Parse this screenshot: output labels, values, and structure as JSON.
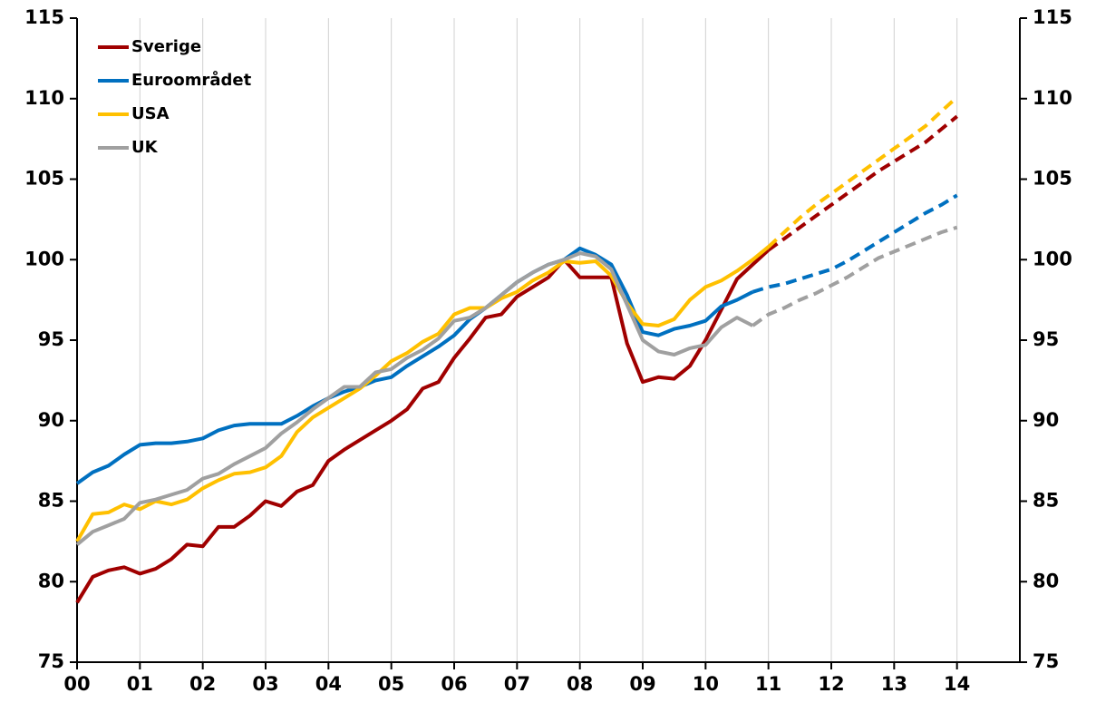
{
  "chart_data": {
    "type": "line",
    "x": [
      0,
      0.25,
      0.5,
      0.75,
      1,
      1.25,
      1.5,
      1.75,
      2,
      2.25,
      2.5,
      2.75,
      3,
      3.25,
      3.5,
      3.75,
      4,
      4.25,
      4.5,
      4.75,
      5,
      5.25,
      5.5,
      5.75,
      6,
      6.25,
      6.5,
      6.75,
      7,
      7.25,
      7.5,
      7.75,
      8,
      8.25,
      8.5,
      8.75,
      9,
      9.25,
      9.5,
      9.75,
      10,
      10.25,
      10.5,
      10.75,
      11,
      11.25,
      11.5,
      11.75,
      12,
      12.25,
      12.5,
      12.75,
      13,
      13.25,
      13.5,
      13.75,
      14
    ],
    "series": [
      {
        "name": "Sverige",
        "color": "#a00000",
        "forecast_from": 11,
        "values": [
          78.7,
          80.3,
          80.7,
          80.9,
          80.5,
          80.8,
          81.4,
          82.3,
          82.2,
          83.4,
          83.4,
          84.1,
          85.0,
          84.7,
          85.6,
          86.0,
          87.5,
          88.2,
          88.8,
          89.4,
          90.0,
          90.7,
          92.0,
          92.4,
          93.9,
          95.1,
          96.4,
          96.6,
          97.7,
          98.3,
          98.9,
          100.0,
          98.9,
          98.9,
          98.9,
          94.8,
          92.4,
          92.7,
          92.6,
          93.4,
          95.0,
          96.9,
          98.8,
          99.7,
          100.6,
          101.3,
          102.0,
          102.7,
          103.4,
          104.1,
          104.8,
          105.5,
          106.1,
          106.7,
          107.3,
          108.1,
          108.9
        ]
      },
      {
        "name": "Euroområdet",
        "color": "#0070c0",
        "forecast_from": 10.75,
        "values": [
          86.1,
          86.8,
          87.2,
          87.9,
          88.5,
          88.6,
          88.6,
          88.7,
          88.9,
          89.4,
          89.7,
          89.8,
          89.8,
          89.8,
          90.3,
          90.9,
          91.4,
          91.8,
          92.1,
          92.5,
          92.7,
          93.4,
          94.0,
          94.6,
          95.3,
          96.3,
          97.0,
          97.8,
          98.6,
          99.2,
          99.7,
          100.0,
          100.7,
          100.3,
          99.7,
          97.8,
          95.5,
          95.3,
          95.7,
          95.9,
          96.2,
          97.1,
          97.5,
          98.0,
          98.3,
          98.5,
          98.8,
          99.1,
          99.4,
          99.9,
          100.5,
          101.1,
          101.7,
          102.3,
          102.9,
          103.4,
          104.0
        ]
      },
      {
        "name": "USA",
        "color": "#ffc000",
        "forecast_from": 11,
        "values": [
          82.5,
          84.2,
          84.3,
          84.8,
          84.5,
          85.0,
          84.8,
          85.1,
          85.8,
          86.3,
          86.7,
          86.8,
          87.1,
          87.8,
          89.3,
          90.2,
          90.8,
          91.4,
          92.0,
          92.8,
          93.7,
          94.2,
          94.9,
          95.4,
          96.6,
          97.0,
          97.0,
          97.6,
          98.0,
          98.7,
          99.2,
          99.9,
          99.8,
          99.9,
          99.0,
          97.3,
          96.0,
          95.9,
          96.3,
          97.5,
          98.3,
          98.7,
          99.3,
          100.0,
          100.8,
          101.7,
          102.6,
          103.4,
          104.1,
          104.8,
          105.5,
          106.2,
          106.9,
          107.6,
          108.3,
          109.2,
          110.1
        ]
      },
      {
        "name": "UK",
        "color": "#a0a0a0",
        "forecast_from": 10.75,
        "values": [
          82.3,
          83.1,
          83.5,
          83.9,
          84.9,
          85.1,
          85.4,
          85.7,
          86.4,
          86.7,
          87.3,
          87.8,
          88.3,
          89.2,
          89.9,
          90.7,
          91.4,
          92.1,
          92.1,
          93.0,
          93.2,
          93.9,
          94.4,
          95.1,
          96.2,
          96.4,
          97.0,
          97.8,
          98.6,
          99.2,
          99.7,
          100.0,
          100.4,
          100.2,
          99.4,
          97.2,
          95.0,
          94.3,
          94.1,
          94.5,
          94.7,
          95.8,
          96.4,
          95.9,
          96.6,
          97.0,
          97.5,
          97.9,
          98.4,
          98.9,
          99.5,
          100.1,
          100.5,
          100.9,
          101.3,
          101.7,
          102.0
        ]
      }
    ],
    "xlim": [
      0,
      15
    ],
    "xticks": [
      {
        "value": 0,
        "label": "00"
      },
      {
        "value": 1,
        "label": "01"
      },
      {
        "value": 2,
        "label": "02"
      },
      {
        "value": 3,
        "label": "03"
      },
      {
        "value": 4,
        "label": "04"
      },
      {
        "value": 5,
        "label": "05"
      },
      {
        "value": 6,
        "label": "06"
      },
      {
        "value": 7,
        "label": "07"
      },
      {
        "value": 8,
        "label": "08"
      },
      {
        "value": 9,
        "label": "09"
      },
      {
        "value": 10,
        "label": "10"
      },
      {
        "value": 11,
        "label": "11"
      },
      {
        "value": 12,
        "label": "12"
      },
      {
        "value": 13,
        "label": "13"
      },
      {
        "value": 14,
        "label": "14"
      }
    ],
    "ylim": [
      75,
      115
    ],
    "yticks": [
      75,
      80,
      85,
      90,
      95,
      100,
      105,
      110,
      115
    ],
    "y2lim": [
      75,
      115
    ],
    "y2ticks": [
      75,
      80,
      85,
      90,
      95,
      100,
      105,
      110,
      115
    ],
    "grid": "x",
    "legend": "upper-left"
  }
}
